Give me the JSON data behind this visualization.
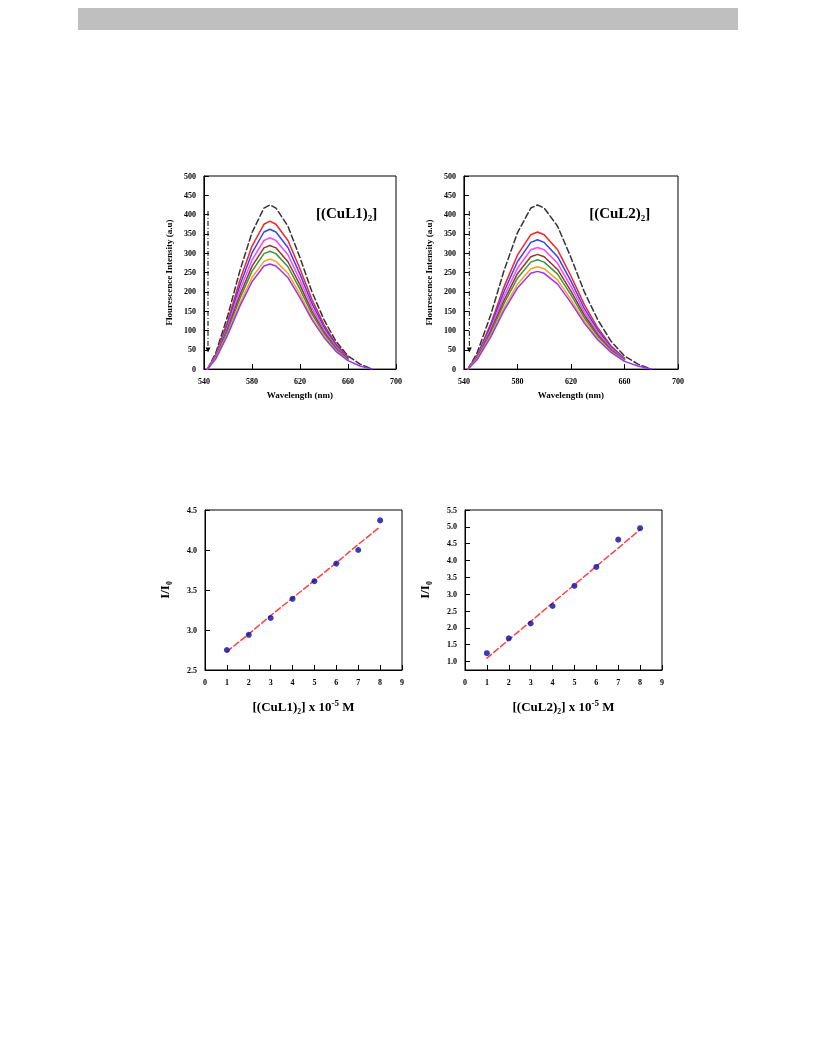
{
  "chart_data": [
    {
      "type": "line",
      "xlabel": "Wavelength (nm)",
      "ylabel": "Flourescence Intensity (a.u)",
      "annotations": [
        "[(CuL1)₂]"
      ],
      "x": [
        543,
        550,
        560,
        570,
        580,
        590,
        595,
        600,
        610,
        620,
        630,
        640,
        650,
        660,
        670,
        680
      ],
      "xlim": [
        540,
        700
      ],
      "xticks": [
        540,
        580,
        620,
        660,
        700
      ],
      "ylim": [
        0,
        500
      ],
      "yticks": [
        0,
        50,
        100,
        150,
        200,
        250,
        300,
        350,
        400,
        450,
        500
      ],
      "grid": false,
      "marker": "none",
      "line_style": "solid",
      "series": [
        {
          "color": "#333333",
          "line_style": "dashed",
          "values": [
            0,
            43,
            140,
            255,
            353,
            417,
            425,
            417,
            370,
            289,
            200,
            128,
            72,
            34,
            13,
            0
          ]
        },
        {
          "color": "#ff2020",
          "values": [
            0,
            38,
            126,
            230,
            318,
            375,
            383,
            375,
            333,
            260,
            180,
            115,
            65,
            31,
            null,
            null
          ]
        },
        {
          "color": "#3344ff",
          "values": [
            0,
            36,
            119,
            217,
            300,
            355,
            362,
            355,
            315,
            246,
            170,
            109,
            62,
            29,
            null,
            null
          ]
        },
        {
          "color": "#ff44ff",
          "values": [
            0,
            34,
            112,
            204,
            282,
            333,
            340,
            333,
            296,
            231,
            160,
            102,
            58,
            27,
            null,
            null
          ]
        },
        {
          "color": "#993333",
          "values": [
            0,
            32,
            106,
            192,
            266,
            314,
            320,
            314,
            278,
            218,
            150,
            96,
            54,
            26,
            null,
            null
          ]
        },
        {
          "color": "#33993a",
          "values": [
            0,
            31,
            101,
            183,
            253,
            299,
            305,
            299,
            265,
            207,
            143,
            92,
            52,
            24,
            null,
            null
          ]
        },
        {
          "color": "#ffa020",
          "values": [
            0,
            29,
            94,
            171,
            237,
            279,
            285,
            279,
            248,
            194,
            134,
            86,
            48,
            23,
            null,
            null
          ]
        },
        {
          "color": "#9933ff",
          "values": [
            0,
            27,
            90,
            163,
            226,
            267,
            272,
            267,
            237,
            185,
            128,
            82,
            46,
            22,
            8,
            0
          ]
        }
      ]
    },
    {
      "type": "line",
      "xlabel": "Wavelength (nm)",
      "ylabel": "Flourescence Intensity (a.u)",
      "annotations": [
        "[(CuL2)₂]"
      ],
      "x": [
        543,
        550,
        560,
        570,
        580,
        590,
        595,
        600,
        610,
        620,
        630,
        640,
        650,
        660,
        670,
        680
      ],
      "xlim": [
        540,
        700
      ],
      "xticks": [
        540,
        580,
        620,
        660,
        700
      ],
      "ylim": [
        0,
        500
      ],
      "yticks": [
        0,
        50,
        100,
        150,
        200,
        250,
        300,
        350,
        400,
        450,
        500
      ],
      "grid": false,
      "marker": "none",
      "line_style": "solid",
      "series": [
        {
          "color": "#333333",
          "line_style": "dashed",
          "values": [
            0,
            43,
            140,
            255,
            353,
            417,
            425,
            417,
            370,
            289,
            200,
            128,
            72,
            34,
            13,
            0
          ]
        },
        {
          "color": "#ff2020",
          "values": [
            0,
            36,
            117,
            213,
            295,
            348,
            355,
            348,
            309,
            241,
            167,
            107,
            60,
            28,
            null,
            null
          ]
        },
        {
          "color": "#3344ff",
          "values": [
            0,
            34,
            111,
            201,
            278,
            328,
            335,
            328,
            291,
            228,
            157,
            101,
            57,
            27,
            null,
            null
          ]
        },
        {
          "color": "#ff44ff",
          "values": [
            0,
            32,
            104,
            189,
            261,
            309,
            315,
            309,
            274,
            214,
            148,
            95,
            54,
            25,
            null,
            null
          ]
        },
        {
          "color": "#993333",
          "values": [
            0,
            30,
            98,
            178,
            247,
            291,
            297,
            291,
            258,
            202,
            140,
            89,
            50,
            24,
            null,
            null
          ]
        },
        {
          "color": "#33993a",
          "values": [
            0,
            28,
            93,
            170,
            235,
            277,
            283,
            277,
            246,
            192,
            133,
            85,
            48,
            23,
            null,
            null
          ]
        },
        {
          "color": "#ffa020",
          "values": [
            0,
            27,
            87,
            159,
            220,
            260,
            265,
            260,
            231,
            180,
            125,
            80,
            45,
            21,
            null,
            null
          ]
        },
        {
          "color": "#9933ff",
          "values": [
            0,
            25,
            83,
            152,
            210,
            248,
            253,
            248,
            220,
            172,
            119,
            76,
            43,
            20,
            8,
            0
          ]
        }
      ]
    },
    {
      "type": "scatter",
      "xlabel": "[(CuL1)₂] x 10$^{-5}$ M",
      "ylabel": "I/I₀",
      "x": [
        1,
        2,
        3,
        4,
        5,
        6,
        7,
        8
      ],
      "xlim": [
        0,
        9
      ],
      "xticks": [
        0,
        1,
        2,
        3,
        4,
        5,
        6,
        7,
        8,
        9
      ],
      "ylim": [
        2.5,
        4.5
      ],
      "yticks": [
        {
          "value": 2.5,
          "label": "2.5"
        },
        {
          "value": 3,
          "label": "3.0"
        },
        {
          "value": 3.5,
          "label": "3.5"
        },
        {
          "value": 4,
          "label": "4.0"
        },
        {
          "value": 4.5,
          "label": "4.5"
        }
      ],
      "grid": false,
      "marker": "circle",
      "series": [
        {
          "color": "#0a0aa0",
          "values": [
            2.75,
            2.94,
            3.15,
            3.39,
            3.61,
            3.83,
            4.0,
            4.37
          ]
        },
        {
          "type": "line",
          "color": "#ff4040",
          "line_style": "dashed",
          "marker": "none",
          "values": [
            2.73,
            2.95,
            3.18,
            3.4,
            3.62,
            3.84,
            4.07,
            4.29
          ]
        }
      ]
    },
    {
      "type": "scatter",
      "xlabel": "[(CuL2)₂] x 10$^{-5}$ M",
      "ylabel": "I/I₀",
      "x": [
        1,
        2,
        3,
        4,
        5,
        6,
        7,
        8
      ],
      "xlim": [
        0,
        9
      ],
      "xticks": [
        0,
        1,
        2,
        3,
        4,
        5,
        6,
        7,
        8,
        9
      ],
      "ylim": [
        0.75,
        5.5
      ],
      "yticks": [
        {
          "value": 1,
          "label": "1.0"
        },
        {
          "value": 1.5,
          "label": "1.5"
        },
        {
          "value": 2,
          "label": "2.0"
        },
        {
          "value": 2.5,
          "label": "2.5"
        },
        {
          "value": 3,
          "label": "3.0"
        },
        {
          "value": 3.5,
          "label": "3.5"
        },
        {
          "value": 4,
          "label": "4.0"
        },
        {
          "value": 4.5,
          "label": "4.5"
        },
        {
          "value": 5,
          "label": "5.0"
        },
        {
          "value": 5.5,
          "label": "5.5"
        }
      ],
      "grid": false,
      "marker": "circle",
      "series": [
        {
          "color": "#0a0aa0",
          "values": [
            1.25,
            1.69,
            2.13,
            2.65,
            3.25,
            3.81,
            4.62,
            4.96
          ]
        },
        {
          "type": "line",
          "color": "#ff4040",
          "line_style": "dashed",
          "marker": "none",
          "values": [
            1.1,
            1.65,
            2.19,
            2.74,
            3.28,
            3.83,
            4.37,
            4.92
          ]
        }
      ]
    }
  ]
}
